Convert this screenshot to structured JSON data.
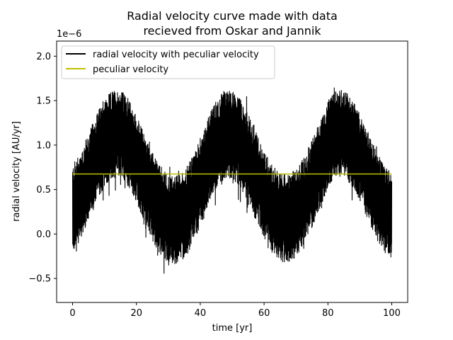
{
  "chart_data": {
    "type": "line",
    "title_lines": [
      "Radial velocity curve made with data",
      "recieved from Oskar and Jannik"
    ],
    "xlabel": "time [yr]",
    "ylabel": "radial velocity [AU/yr]",
    "y_offset_label": "1e−6",
    "xlim": [
      -5,
      105
    ],
    "ylim": [
      -0.77,
      2.17
    ],
    "xticks": [
      0,
      20,
      40,
      60,
      80,
      100
    ],
    "xtick_labels": [
      "0",
      "20",
      "40",
      "60",
      "80",
      "100"
    ],
    "yticks": [
      -0.5,
      0.0,
      0.5,
      1.0,
      1.5,
      2.0
    ],
    "ytick_labels": [
      "−0.5",
      "0.0",
      "0.5",
      "1.0",
      "1.5",
      "2.0"
    ],
    "legend_position": "upper-left",
    "series": [
      {
        "name": "radial velocity with peculiar velocity",
        "color": "#000000",
        "x": [
          0,
          2.5,
          5,
          7.5,
          10,
          12.5,
          15,
          17.5,
          20,
          22.5,
          25,
          27.5,
          30,
          32.5,
          35,
          37.5,
          40,
          42.5,
          45,
          47.5,
          50,
          52.5,
          55,
          57.5,
          60,
          62.5,
          65,
          67.5,
          70,
          72.5,
          75,
          77.5,
          80,
          82.5,
          85,
          87.5,
          90,
          92.5,
          95,
          97.5,
          100
        ],
        "y_mean": [
          0.28,
          0.44,
          0.63,
          0.86,
          1.02,
          1.12,
          1.13,
          1.03,
          0.84,
          0.63,
          0.42,
          0.27,
          0.17,
          0.16,
          0.22,
          0.37,
          0.58,
          0.82,
          1.01,
          1.12,
          1.12,
          1.03,
          0.86,
          0.65,
          0.45,
          0.29,
          0.19,
          0.17,
          0.23,
          0.37,
          0.57,
          0.79,
          1.0,
          1.12,
          1.13,
          1.04,
          0.86,
          0.66,
          0.45,
          0.3,
          0.2
        ],
        "noise_halfwidth": 0.5,
        "y_min_observed": -0.63,
        "y_max_observed": 1.9
      },
      {
        "name": "peculiar velocity",
        "color": "#bfbf00",
        "x": [
          0,
          100
        ],
        "y": [
          0.675,
          0.675
        ]
      }
    ]
  }
}
